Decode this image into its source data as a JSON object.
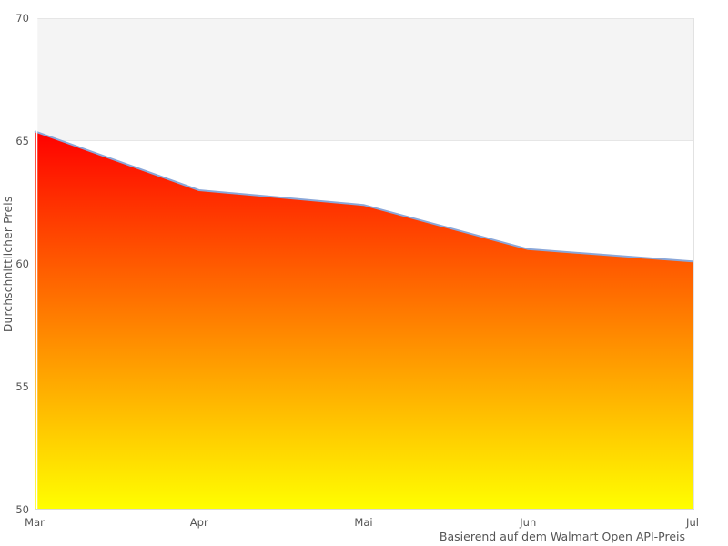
{
  "chart_data": {
    "type": "area",
    "categories": [
      "Mar",
      "Apr",
      "Mai",
      "Jun",
      "Jul"
    ],
    "values": [
      65.4,
      63.0,
      62.4,
      60.6,
      60.1
    ],
    "title": "",
    "xlabel": "",
    "ylabel": "Durchschnittlicher Preis",
    "caption": "Basierend auf dem Walmart Open API-Preis",
    "ylim": [
      50,
      70
    ],
    "yticks": [
      50,
      55,
      60,
      65,
      70
    ],
    "plot_band": {
      "from": 65,
      "to": 70
    },
    "grid": "off",
    "legend": "none",
    "colors": {
      "area_gradient_top": "#ff0000",
      "area_gradient_bottom": "#ffff00",
      "line": "#8aa7d9",
      "band_fill": "#f4f4f4",
      "band_border": "#e6e6e6",
      "axis_line": "#d9d9d9",
      "left_axis_line": "#ffffff",
      "label_text": "#555555"
    }
  }
}
